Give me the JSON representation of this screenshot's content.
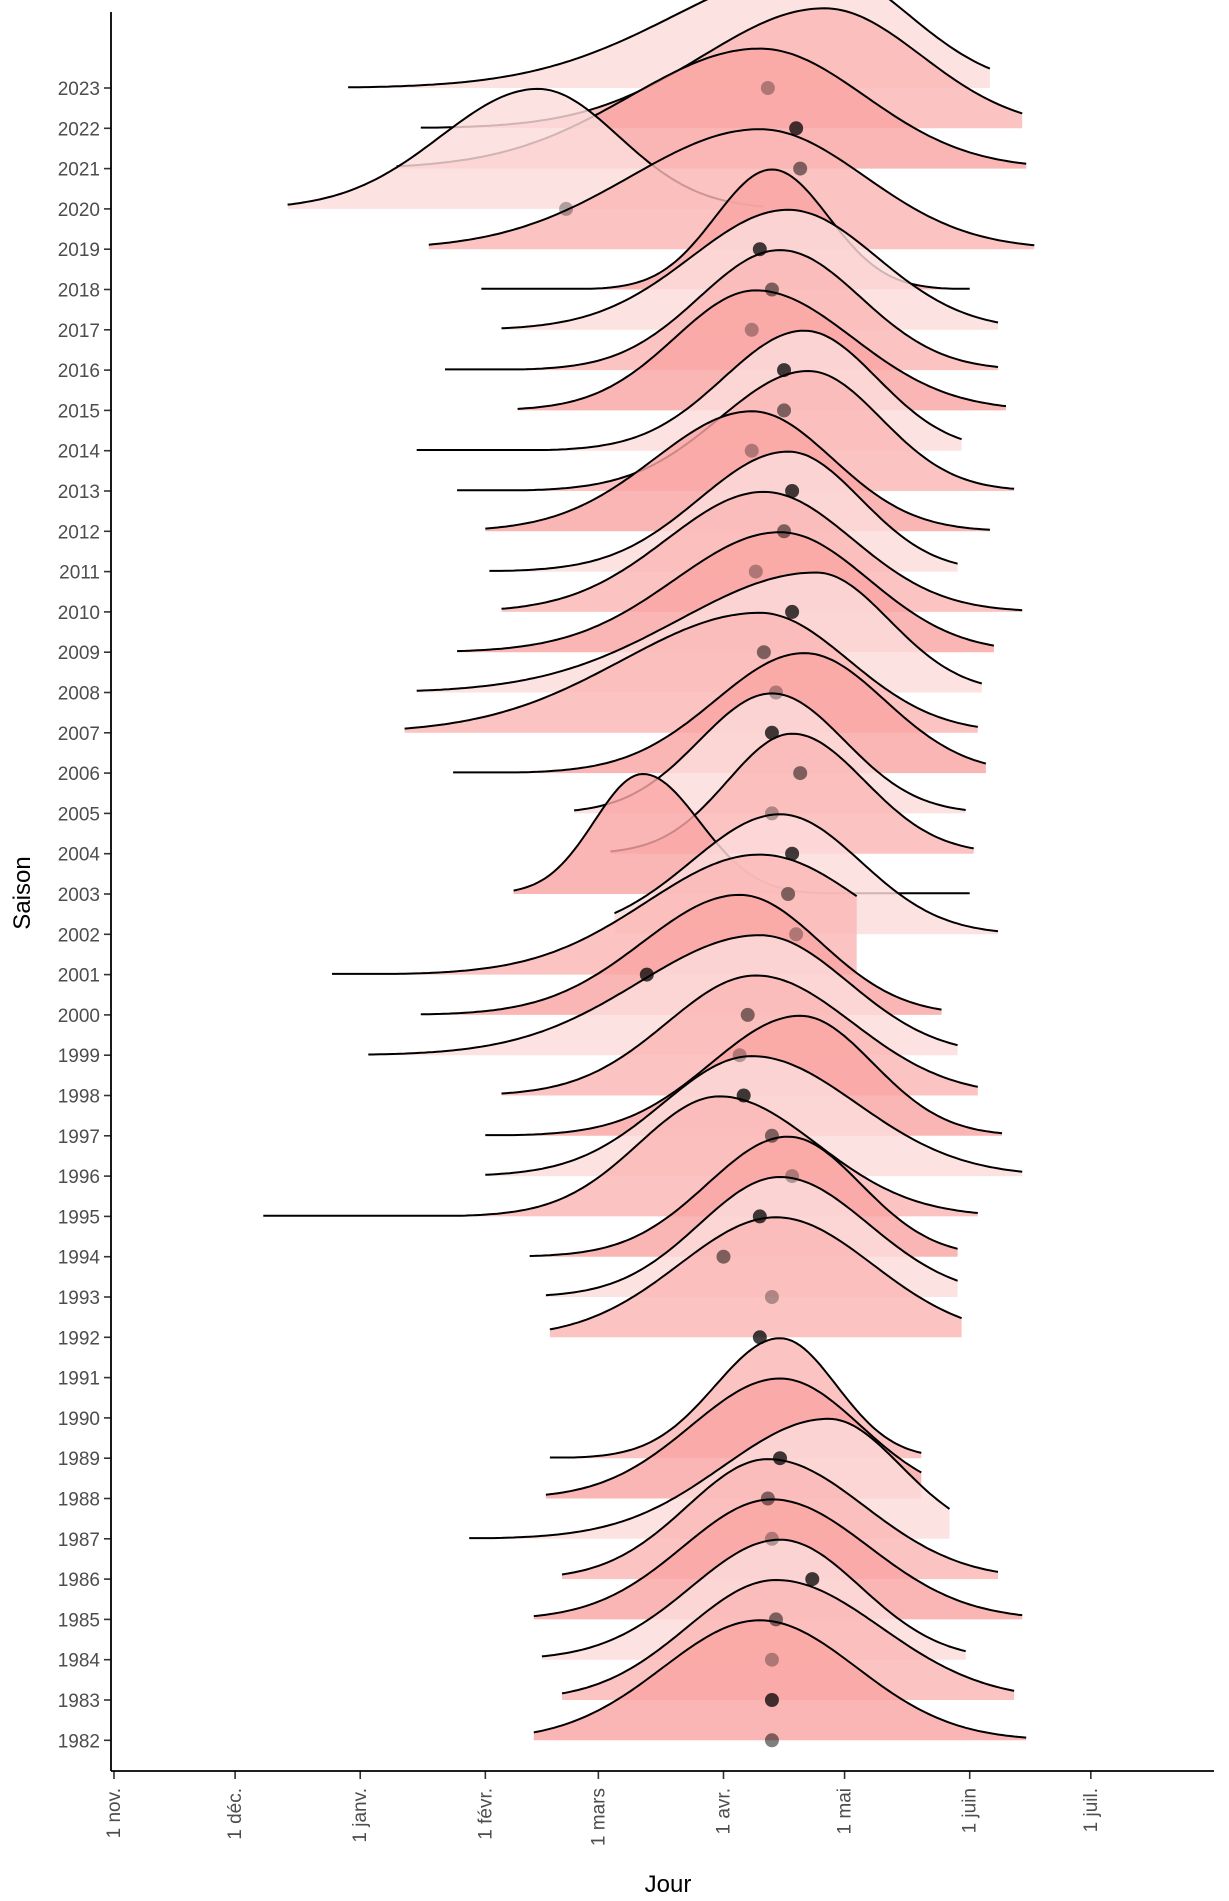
{
  "chart_data": {
    "type": "ridgeline",
    "xlabel": "Jour",
    "ylabel": "Saison",
    "x_ticks": [
      "1 nov.",
      "1 déc.",
      "1 janv.",
      "1 févr.",
      "1 mars",
      "1 avr.",
      "1 mai",
      "1 juin",
      "1 juil."
    ],
    "x_tick_days": [
      0,
      30,
      61,
      92,
      120,
      151,
      181,
      212,
      242
    ],
    "x_range_days": [
      0,
      275
    ],
    "fill_color": "#f8766d",
    "line_color": "#000000",
    "point_color": "#000000",
    "grid": false,
    "seasons": [
      {
        "year": "2023",
        "median_day": 162,
        "mode_day": 175,
        "sd_left": 36,
        "sd_right": 22,
        "from_day": 58,
        "to_day": 217
      },
      {
        "year": "2022",
        "median_day": 169,
        "mode_day": 176,
        "sd_left": 30,
        "sd_right": 24,
        "from_day": 76,
        "to_day": 225
      },
      {
        "year": "2021",
        "median_day": 170,
        "mode_day": 160,
        "sd_left": 32,
        "sd_right": 26,
        "from_day": 70,
        "to_day": 226
      },
      {
        "year": "2020",
        "median_day": 112,
        "mode_day": 105,
        "sd_left": 24,
        "sd_right": 20,
        "from_day": 43,
        "to_day": 161
      },
      {
        "year": "2019",
        "median_day": 160,
        "mode_day": 160,
        "sd_left": 32,
        "sd_right": 26,
        "from_day": 78,
        "to_day": 228
      },
      {
        "year": "2018",
        "median_day": 163,
        "mode_day": 163,
        "sd_left": 14,
        "sd_right": 14,
        "from_day": 91,
        "to_day": 212
      },
      {
        "year": "2017",
        "median_day": 158,
        "mode_day": 167,
        "sd_left": 24,
        "sd_right": 22,
        "from_day": 96,
        "to_day": 219
      },
      {
        "year": "2016",
        "median_day": 166,
        "mode_day": 165,
        "sd_left": 20,
        "sd_right": 20,
        "from_day": 82,
        "to_day": 219
      },
      {
        "year": "2015",
        "median_day": 166,
        "mode_day": 159,
        "sd_left": 20,
        "sd_right": 24,
        "from_day": 100,
        "to_day": 221
      },
      {
        "year": "2014",
        "median_day": 158,
        "mode_day": 171,
        "sd_left": 20,
        "sd_right": 18,
        "from_day": 75,
        "to_day": 210
      },
      {
        "year": "2013",
        "median_day": 168,
        "mode_day": 172,
        "sd_left": 22,
        "sd_right": 18,
        "from_day": 85,
        "to_day": 223
      },
      {
        "year": "2012",
        "median_day": 166,
        "mode_day": 158,
        "sd_left": 24,
        "sd_right": 20,
        "from_day": 92,
        "to_day": 217
      },
      {
        "year": "2011",
        "median_day": 159,
        "mode_day": 167,
        "sd_left": 22,
        "sd_right": 18,
        "from_day": 93,
        "to_day": 209
      },
      {
        "year": "2010",
        "median_day": 168,
        "mode_day": 161,
        "sd_left": 24,
        "sd_right": 22,
        "from_day": 96,
        "to_day": 225
      },
      {
        "year": "2009",
        "median_day": 161,
        "mode_day": 165,
        "sd_left": 26,
        "sd_right": 22,
        "from_day": 85,
        "to_day": 218
      },
      {
        "year": "2008",
        "median_day": 164,
        "mode_day": 174,
        "sd_left": 34,
        "sd_right": 18,
        "from_day": 75,
        "to_day": 215
      },
      {
        "year": "2007",
        "median_day": 163,
        "mode_day": 160,
        "sd_left": 34,
        "sd_right": 22,
        "from_day": 72,
        "to_day": 214
      },
      {
        "year": "2006",
        "median_day": 170,
        "mode_day": 171,
        "sd_left": 22,
        "sd_right": 20,
        "from_day": 84,
        "to_day": 216
      },
      {
        "year": "2005",
        "median_day": 163,
        "mode_day": 163,
        "sd_left": 18,
        "sd_right": 18,
        "from_day": 114,
        "to_day": 211
      },
      {
        "year": "2004",
        "median_day": 168,
        "mode_day": 168,
        "sd_left": 16,
        "sd_right": 18,
        "from_day": 123,
        "to_day": 213
      },
      {
        "year": "2003",
        "median_day": 167,
        "mode_day": 131,
        "sd_left": 12,
        "sd_right": 14,
        "from_day": 99,
        "to_day": 212
      },
      {
        "year": "2002",
        "median_day": 169,
        "mode_day": 165,
        "sd_left": 22,
        "sd_right": 20,
        "from_day": 124,
        "to_day": 219
      },
      {
        "year": "2001",
        "median_day": 132,
        "mode_day": 160,
        "sd_left": 28,
        "sd_right": 26,
        "from_day": 54,
        "to_day": 184
      },
      {
        "year": "2000",
        "median_day": 157,
        "mode_day": 155,
        "sd_left": 24,
        "sd_right": 20,
        "from_day": 76,
        "to_day": 205
      },
      {
        "year": "1999",
        "median_day": 155,
        "mode_day": 160,
        "sd_left": 30,
        "sd_right": 22,
        "from_day": 63,
        "to_day": 209
      },
      {
        "year": "1998",
        "median_day": 156,
        "mode_day": 159,
        "sd_left": 22,
        "sd_right": 24,
        "from_day": 96,
        "to_day": 214
      },
      {
        "year": "1997",
        "median_day": 163,
        "mode_day": 170,
        "sd_left": 22,
        "sd_right": 18,
        "from_day": 92,
        "to_day": 220
      },
      {
        "year": "1996",
        "median_day": 168,
        "mode_day": 158,
        "sd_left": 22,
        "sd_right": 26,
        "from_day": 92,
        "to_day": 225
      },
      {
        "year": "1995",
        "median_day": 160,
        "mode_day": 150,
        "sd_left": 20,
        "sd_right": 24,
        "from_day": 37,
        "to_day": 214
      },
      {
        "year": "1994",
        "median_day": 151,
        "mode_day": 167,
        "sd_left": 20,
        "sd_right": 18,
        "from_day": 103,
        "to_day": 209
      },
      {
        "year": "1993",
        "median_day": 163,
        "mode_day": 165,
        "sd_left": 20,
        "sd_right": 22,
        "from_day": 107,
        "to_day": 209
      },
      {
        "year": "1992",
        "median_day": 160,
        "mode_day": 164,
        "sd_left": 24,
        "sd_right": 24,
        "from_day": 108,
        "to_day": 210
      },
      {
        "year": "1991"
      },
      {
        "year": "1990"
      },
      {
        "year": "1989",
        "median_day": 165,
        "mode_day": 165,
        "sd_left": 16,
        "sd_right": 14,
        "from_day": 108,
        "to_day": 200
      },
      {
        "year": "1988",
        "median_day": 162,
        "mode_day": 165,
        "sd_left": 22,
        "sd_right": 20,
        "from_day": 107,
        "to_day": 200
      },
      {
        "year": "1987",
        "median_day": 163,
        "mode_day": 177,
        "sd_left": 26,
        "sd_right": 18,
        "from_day": 88,
        "to_day": 207
      },
      {
        "year": "1986",
        "median_day": 173,
        "mode_day": 162,
        "sd_left": 20,
        "sd_right": 24,
        "from_day": 111,
        "to_day": 219
      },
      {
        "year": "1985",
        "median_day": 164,
        "mode_day": 163,
        "sd_left": 22,
        "sd_right": 24,
        "from_day": 104,
        "to_day": 225
      },
      {
        "year": "1984",
        "median_day": 163,
        "mode_day": 165,
        "sd_left": 22,
        "sd_right": 20,
        "from_day": 106,
        "to_day": 211
      },
      {
        "year": "1983",
        "median_day": 163,
        "mode_day": 164,
        "sd_left": 22,
        "sd_right": 26,
        "from_day": 111,
        "to_day": 223
      },
      {
        "year": "1982",
        "median_day": 163,
        "mode_day": 160,
        "sd_left": 24,
        "sd_right": 24,
        "from_day": 104,
        "to_day": 226
      }
    ]
  }
}
